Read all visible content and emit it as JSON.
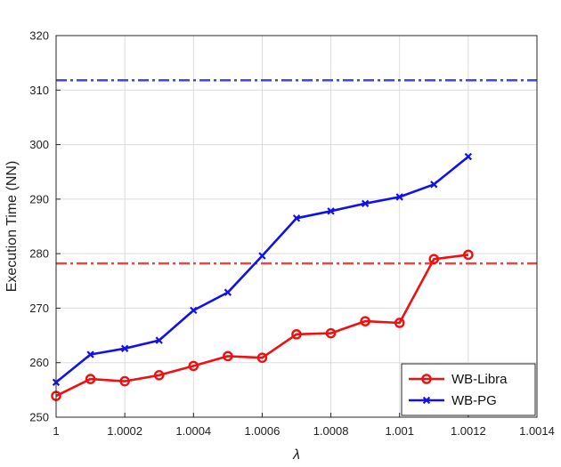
{
  "chart_data": {
    "type": "line",
    "title": "",
    "xlabel": "λ",
    "ylabel": "Execution Time (NN)",
    "xlim": [
      1,
      1.0014
    ],
    "ylim": [
      250,
      320
    ],
    "x_ticks": [
      1,
      1.0002,
      1.0004,
      1.0006,
      1.0008,
      1.001,
      1.0012,
      1.0014
    ],
    "x_tick_labels": [
      "1",
      "1.0002",
      "1.0004",
      "1.0006",
      "1.0008",
      "1.001",
      "1.0012",
      "1.0014"
    ],
    "y_ticks": [
      250,
      260,
      270,
      280,
      290,
      300,
      310,
      320
    ],
    "y_tick_labels": [
      "250",
      "260",
      "270",
      "280",
      "290",
      "300",
      "310",
      "320"
    ],
    "grid": true,
    "legend_position": "bottom-right",
    "x": [
      1,
      1.0001,
      1.0002,
      1.0003,
      1.0004,
      1.0005,
      1.0006,
      1.0007,
      1.0008,
      1.0009,
      1.001,
      1.0011,
      1.0012
    ],
    "series": [
      {
        "name": "WB-Libra",
        "color": "#ee1111",
        "marker": "circle",
        "values": [
          253.9,
          257.0,
          256.6,
          257.7,
          259.4,
          261.2,
          260.9,
          265.2,
          265.4,
          267.6,
          267.3,
          279.0,
          279.8
        ]
      },
      {
        "name": "WB-PG",
        "color": "#1111ee",
        "marker": "x",
        "values": [
          256.4,
          261.5,
          262.6,
          264.1,
          269.6,
          272.9,
          279.6,
          286.5,
          287.8,
          289.2,
          290.4,
          292.7,
          297.8
        ]
      }
    ],
    "reference_lines": [
      {
        "value": 278.2,
        "color": "#ee4444"
      },
      {
        "value": 311.8,
        "color": "#4444ee"
      }
    ]
  }
}
